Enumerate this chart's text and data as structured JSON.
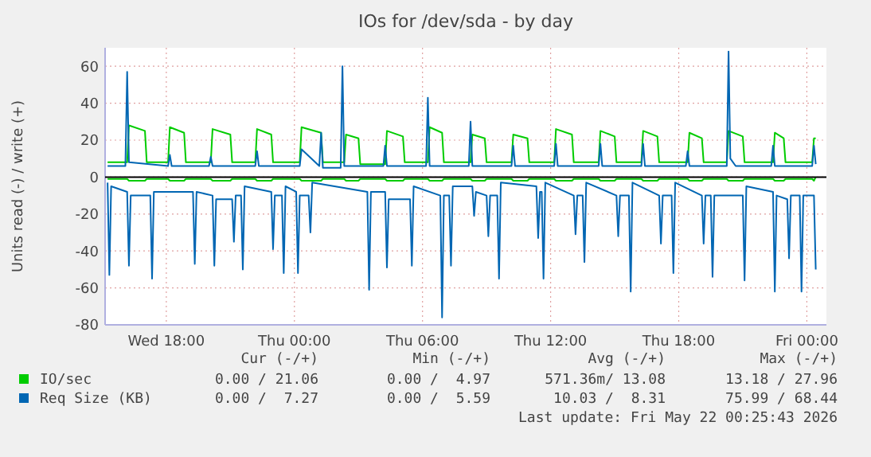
{
  "chart_data": {
    "type": "line",
    "title": "IOs for /dev/sda - by day",
    "ylabel": "Units read (-) / write (+)",
    "xlim": [
      "2026-05-20T15:08",
      "2026-05-22T00:55"
    ],
    "xticks": [
      {
        "value": "2026-05-20T18:00",
        "label": "Wed 18:00"
      },
      {
        "value": "2026-05-21T00:00",
        "label": "Thu 00:00"
      },
      {
        "value": "2026-05-21T06:00",
        "label": "Thu 06:00"
      },
      {
        "value": "2026-05-21T12:00",
        "label": "Thu 12:00"
      },
      {
        "value": "2026-05-21T18:00",
        "label": "Thu 18:00"
      },
      {
        "value": "2026-05-22T00:00",
        "label": "Fri 00:00"
      }
    ],
    "ylim": [
      -80,
      70
    ],
    "yticks": [
      -80,
      -60,
      -40,
      -20,
      0,
      20,
      40,
      60
    ],
    "grid": true,
    "legend": "bottom",
    "line_style": "solid",
    "ref_lines": [
      {
        "axis": "y",
        "value": 0,
        "color": "#000000"
      }
    ],
    "series": [
      {
        "color": "#00cc00",
        "x": [
          "2026-05-20T15:15",
          "2026-05-20T16:10",
          "2026-05-20T16:15",
          "2026-05-20T17:00",
          "2026-05-20T17:05",
          "2026-05-20T18:05",
          "2026-05-20T18:10",
          "2026-05-20T18:50",
          "2026-05-20T18:55",
          "2026-05-20T20:05",
          "2026-05-20T20:10",
          "2026-05-20T21:00",
          "2026-05-20T21:05",
          "2026-05-20T22:10",
          "2026-05-20T22:15",
          "2026-05-20T22:55",
          "2026-05-20T23:00",
          "2026-05-21T00:15",
          "2026-05-21T00:20",
          "2026-05-21T01:15",
          "2026-05-21T01:20",
          "2026-05-21T02:20",
          "2026-05-21T02:25",
          "2026-05-21T03:00",
          "2026-05-21T03:05",
          "2026-05-21T04:15",
          "2026-05-21T04:20",
          "2026-05-21T05:05",
          "2026-05-21T05:10",
          "2026-05-21T06:15",
          "2026-05-21T06:20",
          "2026-05-21T06:55",
          "2026-05-21T07:00",
          "2026-05-21T08:15",
          "2026-05-21T08:20",
          "2026-05-21T08:55",
          "2026-05-21T09:00",
          "2026-05-21T10:10",
          "2026-05-21T10:15",
          "2026-05-21T10:55",
          "2026-05-21T11:00",
          "2026-05-21T12:10",
          "2026-05-21T12:15",
          "2026-05-21T13:00",
          "2026-05-21T13:05",
          "2026-05-21T14:15",
          "2026-05-21T14:20",
          "2026-05-21T15:00",
          "2026-05-21T15:05",
          "2026-05-21T16:15",
          "2026-05-21T16:20",
          "2026-05-21T17:00",
          "2026-05-21T17:05",
          "2026-05-21T18:25",
          "2026-05-21T18:30",
          "2026-05-21T19:05",
          "2026-05-21T19:10",
          "2026-05-21T20:15",
          "2026-05-21T20:20",
          "2026-05-21T21:00",
          "2026-05-21T21:05",
          "2026-05-21T22:25",
          "2026-05-21T22:30",
          "2026-05-21T22:55",
          "2026-05-21T23:00",
          "2026-05-22T00:15",
          "2026-05-22T00:20",
          "2026-05-22T00:25"
        ],
        "values": [
          -1,
          -1,
          -2,
          -2,
          -1,
          -1,
          -2,
          -2,
          -1,
          -1,
          -2,
          -2,
          -1,
          -1,
          -2,
          -2,
          -1,
          -1,
          -2,
          -2,
          -1,
          -1,
          -2,
          -2,
          -1,
          -1,
          -2,
          -2,
          -1,
          -1,
          -2,
          -2,
          -1,
          -1,
          -2,
          -2,
          -1,
          -1,
          -2,
          -2,
          -1,
          -1,
          -2,
          -2,
          -1,
          -1,
          -2,
          -2,
          -1,
          -1,
          -2,
          -2,
          -1,
          -1,
          -2,
          -2,
          -1,
          -1,
          -2,
          -2,
          -1,
          -1,
          -2,
          -2,
          -1,
          -1,
          -2,
          0
        ]
      },
      {
        "color": "#0066b3",
        "x": [
          "2026-05-20T15:15",
          "2026-05-20T15:20",
          "2026-05-20T15:25",
          "2026-05-20T16:10",
          "2026-05-20T16:15",
          "2026-05-20T16:20",
          "2026-05-20T17:15",
          "2026-05-20T17:20",
          "2026-05-20T17:25",
          "2026-05-20T19:15",
          "2026-05-20T19:20",
          "2026-05-20T19:25",
          "2026-05-20T20:10",
          "2026-05-20T20:15",
          "2026-05-20T20:20",
          "2026-05-20T21:05",
          "2026-05-20T21:10",
          "2026-05-20T21:15",
          "2026-05-20T21:30",
          "2026-05-20T21:35",
          "2026-05-20T21:40",
          "2026-05-20T22:55",
          "2026-05-20T23:00",
          "2026-05-20T23:05",
          "2026-05-20T23:25",
          "2026-05-20T23:30",
          "2026-05-20T23:35",
          "2026-05-21T00:05",
          "2026-05-21T00:10",
          "2026-05-21T00:15",
          "2026-05-21T00:40",
          "2026-05-21T00:45",
          "2026-05-21T00:50",
          "2026-05-21T03:25",
          "2026-05-21T03:30",
          "2026-05-21T03:35",
          "2026-05-21T04:15",
          "2026-05-21T04:20",
          "2026-05-21T04:25",
          "2026-05-21T05:25",
          "2026-05-21T05:30",
          "2026-05-21T05:35",
          "2026-05-21T06:50",
          "2026-05-21T06:55",
          "2026-05-21T07:00",
          "2026-05-21T07:15",
          "2026-05-21T07:20",
          "2026-05-21T07:25",
          "2026-05-21T08:20",
          "2026-05-21T08:25",
          "2026-05-21T08:30",
          "2026-05-21T09:00",
          "2026-05-21T09:05",
          "2026-05-21T09:10",
          "2026-05-21T09:30",
          "2026-05-21T09:35",
          "2026-05-21T09:40",
          "2026-05-21T11:20",
          "2026-05-21T11:25",
          "2026-05-21T11:30",
          "2026-05-21T11:35",
          "2026-05-21T11:40",
          "2026-05-21T11:45",
          "2026-05-21T13:05",
          "2026-05-21T13:10",
          "2026-05-21T13:15",
          "2026-05-21T13:30",
          "2026-05-21T13:35",
          "2026-05-21T13:40",
          "2026-05-21T15:05",
          "2026-05-21T15:10",
          "2026-05-21T15:15",
          "2026-05-21T15:40",
          "2026-05-21T15:45",
          "2026-05-21T15:50",
          "2026-05-21T17:05",
          "2026-05-21T17:10",
          "2026-05-21T17:15",
          "2026-05-21T17:40",
          "2026-05-21T17:45",
          "2026-05-21T17:50",
          "2026-05-21T19:05",
          "2026-05-21T19:10",
          "2026-05-21T19:15",
          "2026-05-21T19:30",
          "2026-05-21T19:35",
          "2026-05-21T19:40",
          "2026-05-21T21:00",
          "2026-05-21T21:05",
          "2026-05-21T21:10",
          "2026-05-21T22:25",
          "2026-05-21T22:30",
          "2026-05-21T22:35",
          "2026-05-21T23:05",
          "2026-05-21T23:10",
          "2026-05-21T23:15",
          "2026-05-21T23:40",
          "2026-05-21T23:45",
          "2026-05-21T23:50",
          "2026-05-22T00:20",
          "2026-05-22T00:25"
        ],
        "values": [
          -3,
          -53,
          -5,
          -8,
          -48,
          -10,
          -10,
          -55,
          -8,
          -8,
          -47,
          -8,
          -10,
          -48,
          -12,
          -12,
          -35,
          -10,
          -10,
          -50,
          -5,
          -8,
          -39,
          -10,
          -10,
          -52,
          -5,
          -8,
          -52,
          -10,
          -10,
          -30,
          -3,
          -8,
          -61,
          -8,
          -8,
          -49,
          -12,
          -12,
          -48,
          -5,
          -10,
          -76,
          -10,
          -10,
          -48,
          -5,
          -5,
          -21,
          -8,
          -10,
          -32,
          -10,
          -10,
          -55,
          -3,
          -5,
          -33,
          -8,
          -8,
          -55,
          -3,
          -10,
          -31,
          -10,
          -10,
          -46,
          -3,
          -10,
          -32,
          -10,
          -10,
          -62,
          -3,
          -10,
          -36,
          -10,
          -10,
          -52,
          -3,
          -10,
          -36,
          -10,
          -10,
          -54,
          -10,
          -10,
          -56,
          -5,
          -8,
          -62,
          -10,
          -12,
          -44,
          -10,
          -10,
          -62,
          -10,
          -10,
          -50
        ]
      },
      {
        "name": "IO/sec",
        "color": "#00cc00",
        "x": [
          "2026-05-20T15:15",
          "2026-05-20T16:10",
          "2026-05-20T16:15",
          "2026-05-20T17:00",
          "2026-05-20T17:05",
          "2026-05-20T18:05",
          "2026-05-20T18:10",
          "2026-05-20T18:50",
          "2026-05-20T18:55",
          "2026-05-20T20:05",
          "2026-05-20T20:10",
          "2026-05-20T21:00",
          "2026-05-20T21:05",
          "2026-05-20T22:10",
          "2026-05-20T22:15",
          "2026-05-20T22:55",
          "2026-05-20T23:00",
          "2026-05-21T00:15",
          "2026-05-21T00:20",
          "2026-05-21T01:15",
          "2026-05-21T01:20",
          "2026-05-21T02:20",
          "2026-05-21T02:25",
          "2026-05-21T03:00",
          "2026-05-21T03:05",
          "2026-05-21T04:15",
          "2026-05-21T04:20",
          "2026-05-21T05:05",
          "2026-05-21T05:10",
          "2026-05-21T06:15",
          "2026-05-21T06:20",
          "2026-05-21T06:55",
          "2026-05-21T07:00",
          "2026-05-21T08:15",
          "2026-05-21T08:20",
          "2026-05-21T08:55",
          "2026-05-21T09:00",
          "2026-05-21T10:10",
          "2026-05-21T10:15",
          "2026-05-21T10:55",
          "2026-05-21T11:00",
          "2026-05-21T12:10",
          "2026-05-21T12:15",
          "2026-05-21T13:00",
          "2026-05-21T13:05",
          "2026-05-21T14:15",
          "2026-05-21T14:20",
          "2026-05-21T15:00",
          "2026-05-21T15:05",
          "2026-05-21T16:15",
          "2026-05-21T16:20",
          "2026-05-21T17:00",
          "2026-05-21T17:05",
          "2026-05-21T18:25",
          "2026-05-21T18:30",
          "2026-05-21T19:05",
          "2026-05-21T19:10",
          "2026-05-21T20:15",
          "2026-05-21T20:20",
          "2026-05-21T21:00",
          "2026-05-21T21:05",
          "2026-05-21T22:25",
          "2026-05-21T22:30",
          "2026-05-21T22:55",
          "2026-05-21T23:00",
          "2026-05-22T00:15",
          "2026-05-22T00:20",
          "2026-05-22T00:25"
        ],
        "values": [
          8,
          8,
          28,
          25,
          8,
          8,
          27,
          24,
          8,
          8,
          26,
          23,
          8,
          8,
          26,
          23,
          8,
          8,
          27,
          24,
          8,
          8,
          23,
          21,
          7,
          7,
          25,
          22,
          8,
          8,
          27,
          24,
          8,
          8,
          23,
          21,
          8,
          8,
          23,
          21,
          8,
          8,
          26,
          23,
          8,
          8,
          25,
          22,
          8,
          8,
          25,
          22,
          8,
          8,
          24,
          21,
          8,
          8,
          25,
          22,
          8,
          8,
          24,
          21,
          8,
          8,
          21,
          21
        ]
      },
      {
        "name": "Req Size (KB)",
        "color": "#0066b3",
        "x": [
          "2026-05-20T15:15",
          "2026-05-20T16:05",
          "2026-05-20T16:10",
          "2026-05-20T16:15",
          "2026-05-20T18:05",
          "2026-05-20T18:10",
          "2026-05-20T18:15",
          "2026-05-20T20:00",
          "2026-05-20T20:05",
          "2026-05-20T20:10",
          "2026-05-20T22:10",
          "2026-05-20T22:15",
          "2026-05-20T22:20",
          "2026-05-21T00:15",
          "2026-05-21T00:20",
          "2026-05-21T01:10",
          "2026-05-21T01:15",
          "2026-05-21T01:20",
          "2026-05-21T02:10",
          "2026-05-21T02:15",
          "2026-05-21T02:20",
          "2026-05-21T04:10",
          "2026-05-21T04:15",
          "2026-05-21T04:20",
          "2026-05-21T06:10",
          "2026-05-21T06:15",
          "2026-05-21T06:20",
          "2026-05-21T08:10",
          "2026-05-21T08:15",
          "2026-05-21T08:20",
          "2026-05-21T10:10",
          "2026-05-21T10:15",
          "2026-05-21T10:20",
          "2026-05-21T12:10",
          "2026-05-21T12:15",
          "2026-05-21T12:20",
          "2026-05-21T14:15",
          "2026-05-21T14:20",
          "2026-05-21T14:25",
          "2026-05-21T16:15",
          "2026-05-21T16:20",
          "2026-05-21T16:25",
          "2026-05-21T18:20",
          "2026-05-21T18:25",
          "2026-05-21T18:30",
          "2026-05-21T20:15",
          "2026-05-21T20:20",
          "2026-05-21T20:25",
          "2026-05-21T20:40",
          "2026-05-21T22:20",
          "2026-05-21T22:25",
          "2026-05-21T22:30",
          "2026-05-22T00:15",
          "2026-05-22T00:20",
          "2026-05-22T00:25"
        ],
        "values": [
          6,
          6,
          57,
          8,
          6,
          12,
          6,
          6,
          11,
          6,
          6,
          14,
          6,
          6,
          15,
          6,
          24,
          5,
          5,
          60,
          6,
          6,
          17,
          6,
          6,
          43,
          6,
          6,
          30,
          6,
          6,
          17,
          6,
          6,
          18,
          6,
          6,
          18,
          6,
          6,
          18,
          6,
          6,
          14,
          6,
          6,
          68,
          10,
          6,
          6,
          17,
          6,
          6,
          17,
          7
        ]
      }
    ],
    "annotations": [
      "Cur (-/+)",
      "Min (-/+)",
      "Avg (-/+)",
      "Max (-/+)",
      "0.00 / 21.06",
      "0.00 /  4.97",
      "571.36m/ 13.08",
      "13.18 / 27.96",
      "0.00 /  7.27",
      "0.00 /  5.59",
      "10.03 /  8.31",
      "75.99 / 68.44",
      "Last update: Fri May 22 00:25:43 2026"
    ]
  }
}
